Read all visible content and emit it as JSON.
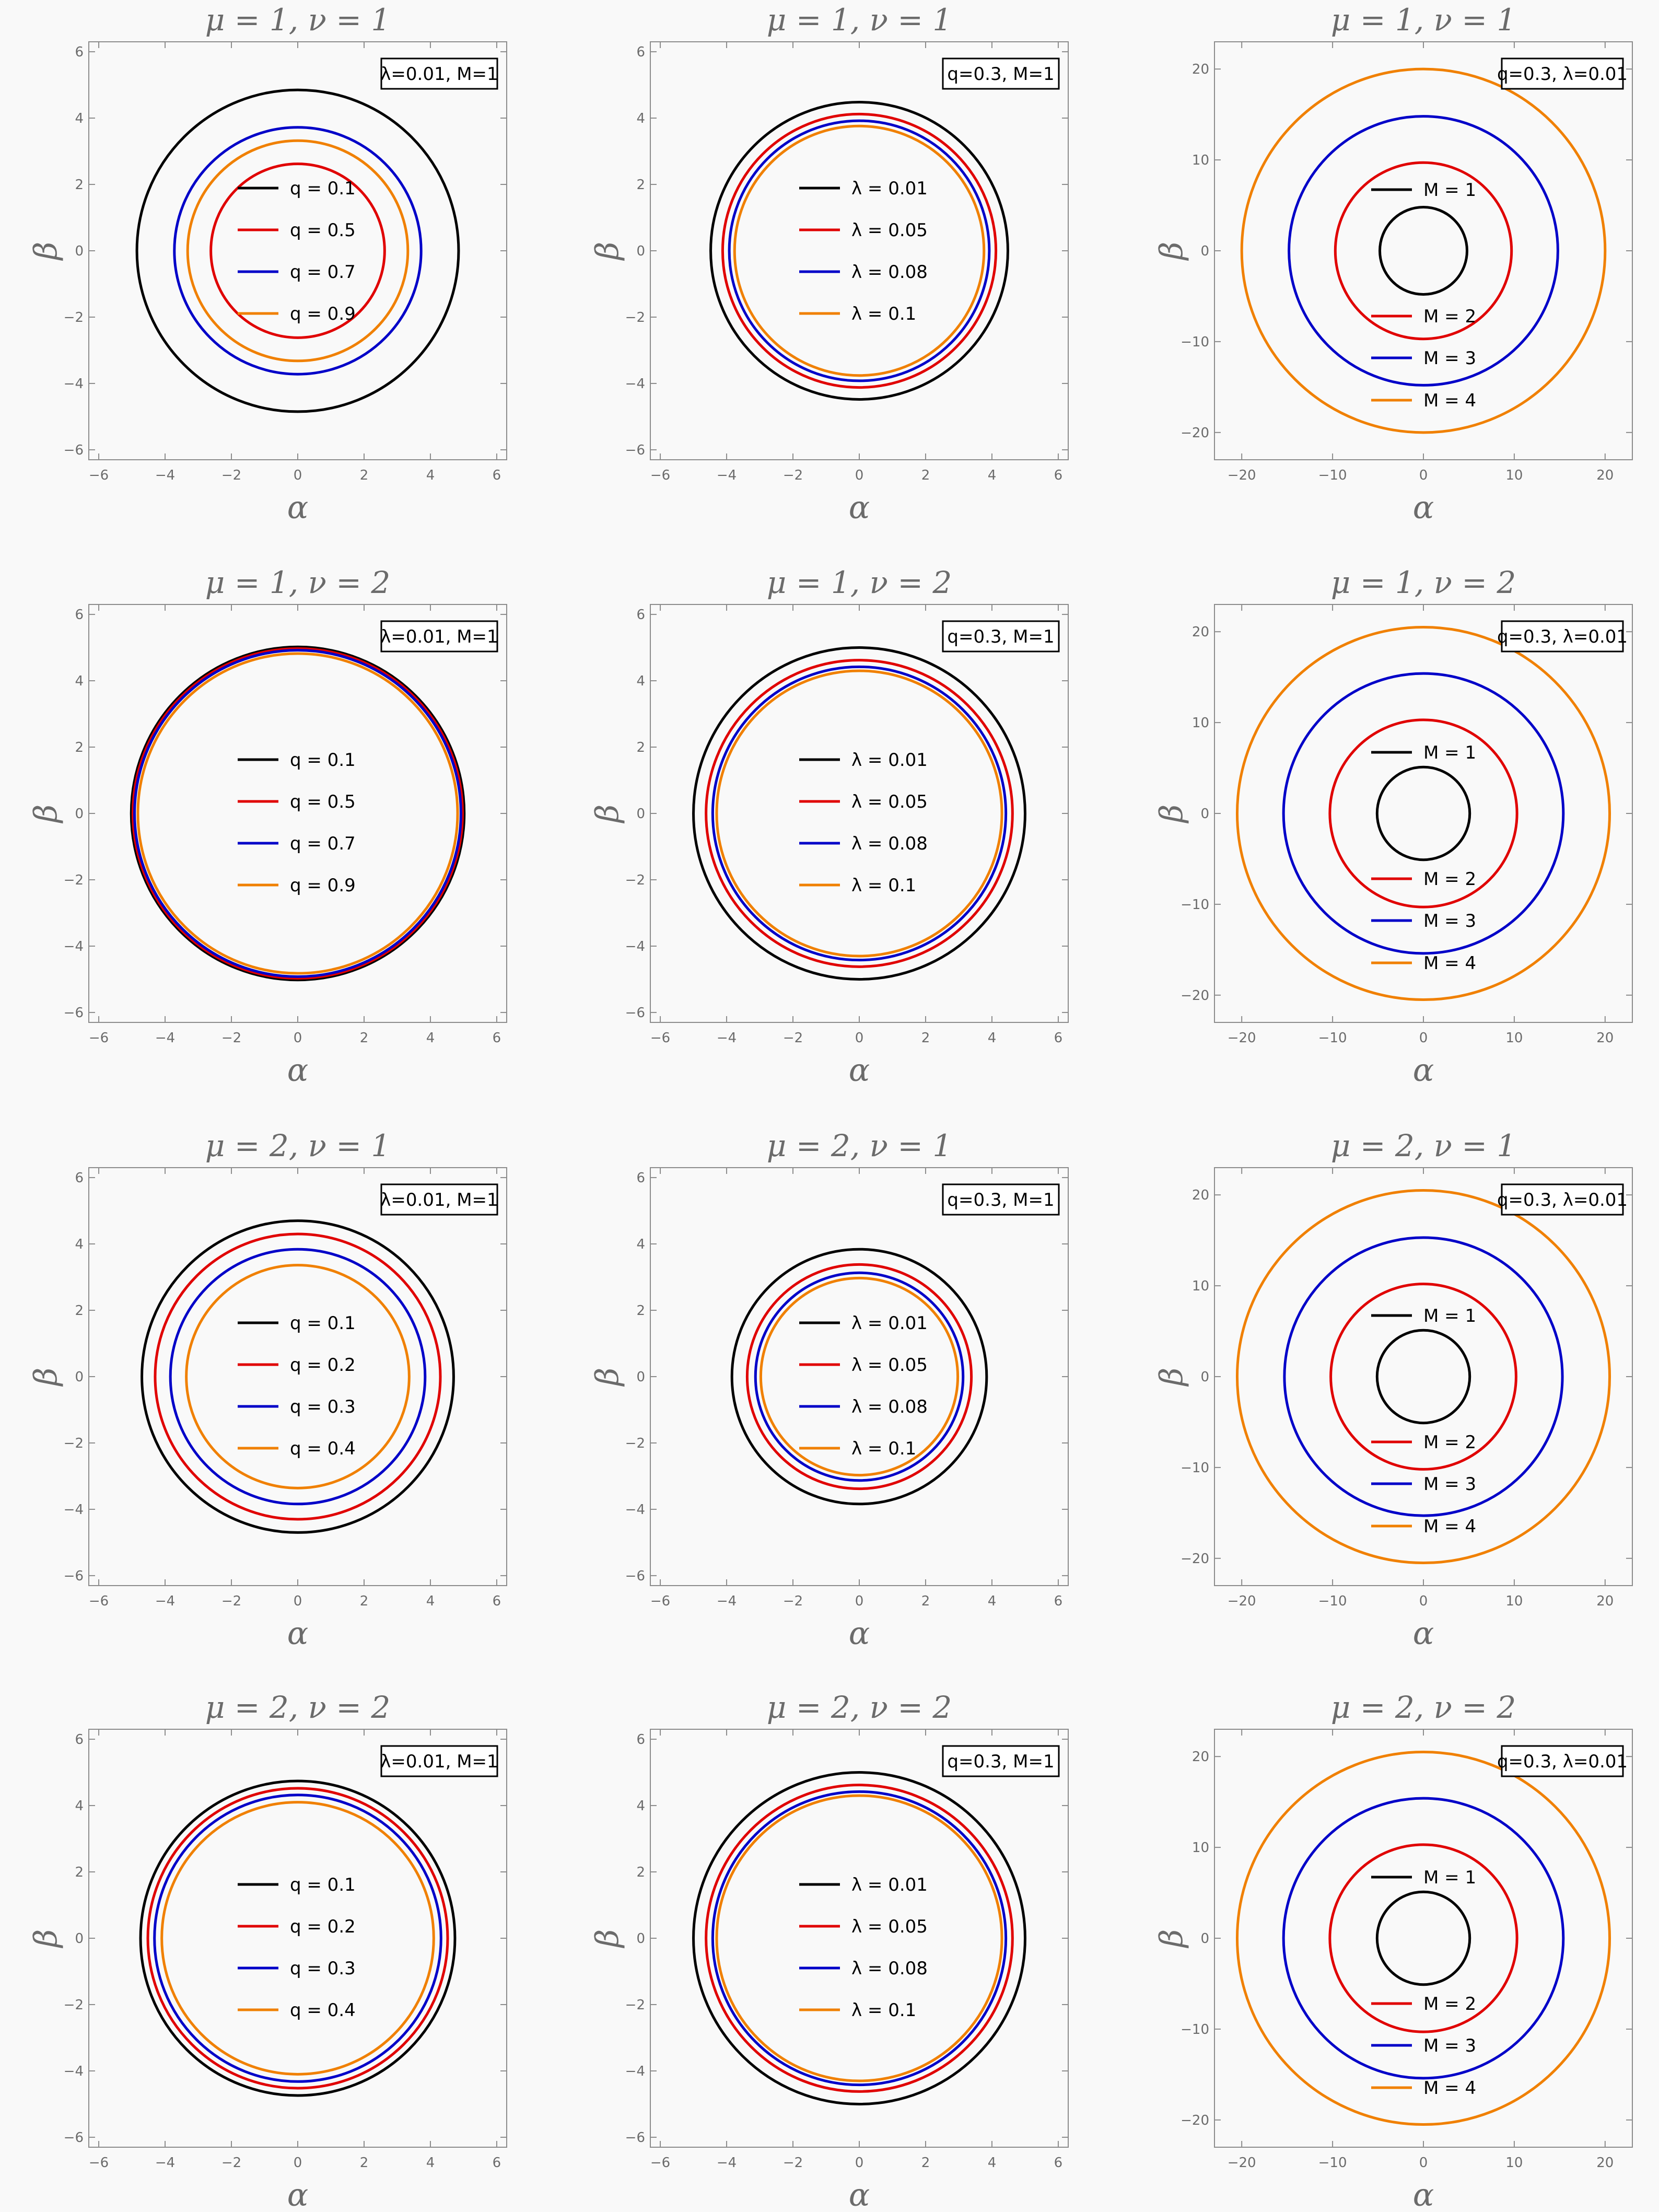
{
  "chart_data": [
    {
      "type": "line",
      "title": "μ = 1, ν = 1",
      "xlabel": "α",
      "ylabel": "β",
      "xlim": [
        -6.3,
        6.3
      ],
      "ylim": [
        -6.3,
        6.3
      ],
      "ticks": [
        -6,
        -4,
        -2,
        0,
        2,
        4,
        6
      ],
      "tick_labels": [
        "−6",
        "−4",
        "−2",
        "0",
        "2",
        "4",
        "6"
      ],
      "params_box": "λ=0.01, M=1",
      "legend_position": "center-left",
      "series": [
        {
          "name": "q = 0.1",
          "color": "#000000",
          "radius": 4.85
        },
        {
          "name": "q = 0.5",
          "color": "#e00000",
          "radius": 2.62
        },
        {
          "name": "q = 0.7",
          "color": "#0000c8",
          "radius": 3.72
        },
        {
          "name": "q = 0.9",
          "color": "#f08000",
          "radius": 3.32
        }
      ]
    },
    {
      "type": "line",
      "title": "μ = 1, ν = 1",
      "xlabel": "α",
      "ylabel": "β",
      "xlim": [
        -6.3,
        6.3
      ],
      "ylim": [
        -6.3,
        6.3
      ],
      "ticks": [
        -6,
        -4,
        -2,
        0,
        2,
        4,
        6
      ],
      "tick_labels": [
        "−6",
        "−4",
        "−2",
        "0",
        "2",
        "4",
        "6"
      ],
      "params_box": "q=0.3, M=1",
      "legend_position": "center",
      "series": [
        {
          "name": "λ = 0.01",
          "color": "#000000",
          "radius": 4.48
        },
        {
          "name": "λ = 0.05",
          "color": "#e00000",
          "radius": 4.12
        },
        {
          "name": "λ = 0.08",
          "color": "#0000c8",
          "radius": 3.92
        },
        {
          "name": "λ = 0.1",
          "color": "#f08000",
          "radius": 3.76
        }
      ]
    },
    {
      "type": "line",
      "title": "μ = 1, ν = 1",
      "xlabel": "α",
      "ylabel": "β",
      "xlim": [
        -23,
        23
      ],
      "ylim": [
        -23,
        23
      ],
      "ticks": [
        -20,
        -10,
        0,
        10,
        20
      ],
      "tick_labels": [
        "−20",
        "−10",
        "0",
        "10",
        "20"
      ],
      "params_box": "q=0.3, λ=0.01",
      "legend_position": "split",
      "series": [
        {
          "name": "M = 1",
          "color": "#000000",
          "radius": 4.8
        },
        {
          "name": "M = 2",
          "color": "#e00000",
          "radius": 9.7
        },
        {
          "name": "M = 3",
          "color": "#0000c8",
          "radius": 14.8
        },
        {
          "name": "M = 4",
          "color": "#f08000",
          "radius": 20.0
        }
      ]
    },
    {
      "type": "line",
      "title": "μ = 1, ν = 2",
      "xlabel": "α",
      "ylabel": "β",
      "xlim": [
        -6.3,
        6.3
      ],
      "ylim": [
        -6.3,
        6.3
      ],
      "ticks": [
        -6,
        -4,
        -2,
        0,
        2,
        4,
        6
      ],
      "tick_labels": [
        "−6",
        "−4",
        "−2",
        "0",
        "2",
        "4",
        "6"
      ],
      "params_box": "λ=0.01, M=1",
      "legend_position": "center",
      "series": [
        {
          "name": "q = 0.1",
          "color": "#000000",
          "radius": 5.02
        },
        {
          "name": "q = 0.5",
          "color": "#e00000",
          "radius": 4.97
        },
        {
          "name": "q = 0.7",
          "color": "#0000c8",
          "radius": 4.92
        },
        {
          "name": "q = 0.9",
          "color": "#f08000",
          "radius": 4.82
        }
      ]
    },
    {
      "type": "line",
      "title": "μ = 1, ν = 2",
      "xlabel": "α",
      "ylabel": "β",
      "xlim": [
        -6.3,
        6.3
      ],
      "ylim": [
        -6.3,
        6.3
      ],
      "ticks": [
        -6,
        -4,
        -2,
        0,
        2,
        4,
        6
      ],
      "tick_labels": [
        "−6",
        "−4",
        "−2",
        "0",
        "2",
        "4",
        "6"
      ],
      "params_box": "q=0.3, M=1",
      "legend_position": "center",
      "series": [
        {
          "name": "λ = 0.01",
          "color": "#000000",
          "radius": 5.0
        },
        {
          "name": "λ = 0.05",
          "color": "#e00000",
          "radius": 4.62
        },
        {
          "name": "λ = 0.08",
          "color": "#0000c8",
          "radius": 4.42
        },
        {
          "name": "λ = 0.1",
          "color": "#f08000",
          "radius": 4.3
        }
      ]
    },
    {
      "type": "line",
      "title": "μ = 1, ν = 2",
      "xlabel": "α",
      "ylabel": "β",
      "xlim": [
        -23,
        23
      ],
      "ylim": [
        -23,
        23
      ],
      "ticks": [
        -20,
        -10,
        0,
        10,
        20
      ],
      "tick_labels": [
        "−20",
        "−10",
        "0",
        "10",
        "20"
      ],
      "params_box": "q=0.3, λ=0.01",
      "legend_position": "split",
      "series": [
        {
          "name": "M = 1",
          "color": "#000000",
          "radius": 5.1
        },
        {
          "name": "M = 2",
          "color": "#e00000",
          "radius": 10.3
        },
        {
          "name": "M = 3",
          "color": "#0000c8",
          "radius": 15.4
        },
        {
          "name": "M = 4",
          "color": "#f08000",
          "radius": 20.5
        }
      ]
    },
    {
      "type": "line",
      "title": "μ = 2, ν = 1",
      "xlabel": "α",
      "ylabel": "β",
      "xlim": [
        -6.3,
        6.3
      ],
      "ylim": [
        -6.3,
        6.3
      ],
      "ticks": [
        -6,
        -4,
        -2,
        0,
        2,
        4,
        6
      ],
      "tick_labels": [
        "−6",
        "−4",
        "−2",
        "0",
        "2",
        "4",
        "6"
      ],
      "params_box": "λ=0.01, M=1",
      "legend_position": "center",
      "series": [
        {
          "name": "q = 0.1",
          "color": "#000000",
          "radius": 4.7
        },
        {
          "name": "q = 0.2",
          "color": "#e00000",
          "radius": 4.3
        },
        {
          "name": "q = 0.3",
          "color": "#0000c8",
          "radius": 3.84
        },
        {
          "name": "q = 0.4",
          "color": "#f08000",
          "radius": 3.36
        }
      ]
    },
    {
      "type": "line",
      "title": "μ = 2, ν = 1",
      "xlabel": "α",
      "ylabel": "β",
      "xlim": [
        -6.3,
        6.3
      ],
      "ylim": [
        -6.3,
        6.3
      ],
      "ticks": [
        -6,
        -4,
        -2,
        0,
        2,
        4,
        6
      ],
      "tick_labels": [
        "−6",
        "−4",
        "−2",
        "0",
        "2",
        "4",
        "6"
      ],
      "params_box": "q=0.3, M=1",
      "legend_position": "center",
      "series": [
        {
          "name": "λ = 0.01",
          "color": "#000000",
          "radius": 3.84
        },
        {
          "name": "λ = 0.05",
          "color": "#e00000",
          "radius": 3.38
        },
        {
          "name": "λ = 0.08",
          "color": "#0000c8",
          "radius": 3.13
        },
        {
          "name": "λ = 0.1",
          "color": "#f08000",
          "radius": 2.97
        }
      ]
    },
    {
      "type": "line",
      "title": "μ = 2, ν = 1",
      "xlabel": "α",
      "ylabel": "β",
      "xlim": [
        -23,
        23
      ],
      "ylim": [
        -23,
        23
      ],
      "ticks": [
        -20,
        -10,
        0,
        10,
        20
      ],
      "tick_labels": [
        "−20",
        "−10",
        "0",
        "10",
        "20"
      ],
      "params_box": "q=0.3, λ=0.01",
      "legend_position": "split",
      "series": [
        {
          "name": "M = 1",
          "color": "#000000",
          "radius": 5.1
        },
        {
          "name": "M = 2",
          "color": "#e00000",
          "radius": 10.2
        },
        {
          "name": "M = 3",
          "color": "#0000c8",
          "radius": 15.3
        },
        {
          "name": "M = 4",
          "color": "#f08000",
          "radius": 20.5
        }
      ]
    },
    {
      "type": "line",
      "title": "μ = 2, ν = 2",
      "xlabel": "α",
      "ylabel": "β",
      "xlim": [
        -6.3,
        6.3
      ],
      "ylim": [
        -6.3,
        6.3
      ],
      "ticks": [
        -6,
        -4,
        -2,
        0,
        2,
        4,
        6
      ],
      "tick_labels": [
        "−6",
        "−4",
        "−2",
        "0",
        "2",
        "4",
        "6"
      ],
      "params_box": "λ=0.01, M=1",
      "legend_position": "center",
      "series": [
        {
          "name": "q = 0.1",
          "color": "#000000",
          "radius": 4.74
        },
        {
          "name": "q = 0.2",
          "color": "#e00000",
          "radius": 4.52
        },
        {
          "name": "q = 0.3",
          "color": "#0000c8",
          "radius": 4.32
        },
        {
          "name": "q = 0.4",
          "color": "#f08000",
          "radius": 4.1
        }
      ]
    },
    {
      "type": "line",
      "title": "μ = 2, ν = 2",
      "xlabel": "α",
      "ylabel": "β",
      "xlim": [
        -6.3,
        6.3
      ],
      "ylim": [
        -6.3,
        6.3
      ],
      "ticks": [
        -6,
        -4,
        -2,
        0,
        2,
        4,
        6
      ],
      "tick_labels": [
        "−6",
        "−4",
        "−2",
        "0",
        "2",
        "4",
        "6"
      ],
      "params_box": "q=0.3, M=1",
      "legend_position": "center",
      "series": [
        {
          "name": "λ = 0.01",
          "color": "#000000",
          "radius": 5.0
        },
        {
          "name": "λ = 0.05",
          "color": "#e00000",
          "radius": 4.62
        },
        {
          "name": "λ = 0.08",
          "color": "#0000c8",
          "radius": 4.42
        },
        {
          "name": "λ = 0.1",
          "color": "#f08000",
          "radius": 4.3
        }
      ]
    },
    {
      "type": "line",
      "title": "μ = 2, ν = 2",
      "xlabel": "α",
      "ylabel": "β",
      "xlim": [
        -23,
        23
      ],
      "ylim": [
        -23,
        23
      ],
      "ticks": [
        -20,
        -10,
        0,
        10,
        20
      ],
      "tick_labels": [
        "−20",
        "−10",
        "0",
        "10",
        "20"
      ],
      "params_box": "q=0.3, λ=0.01",
      "legend_position": "split",
      "series": [
        {
          "name": "M = 1",
          "color": "#000000",
          "radius": 5.1
        },
        {
          "name": "M = 2",
          "color": "#e00000",
          "radius": 10.3
        },
        {
          "name": "M = 3",
          "color": "#0000c8",
          "radius": 15.4
        },
        {
          "name": "M = 4",
          "color": "#f08000",
          "radius": 20.5
        }
      ]
    }
  ]
}
